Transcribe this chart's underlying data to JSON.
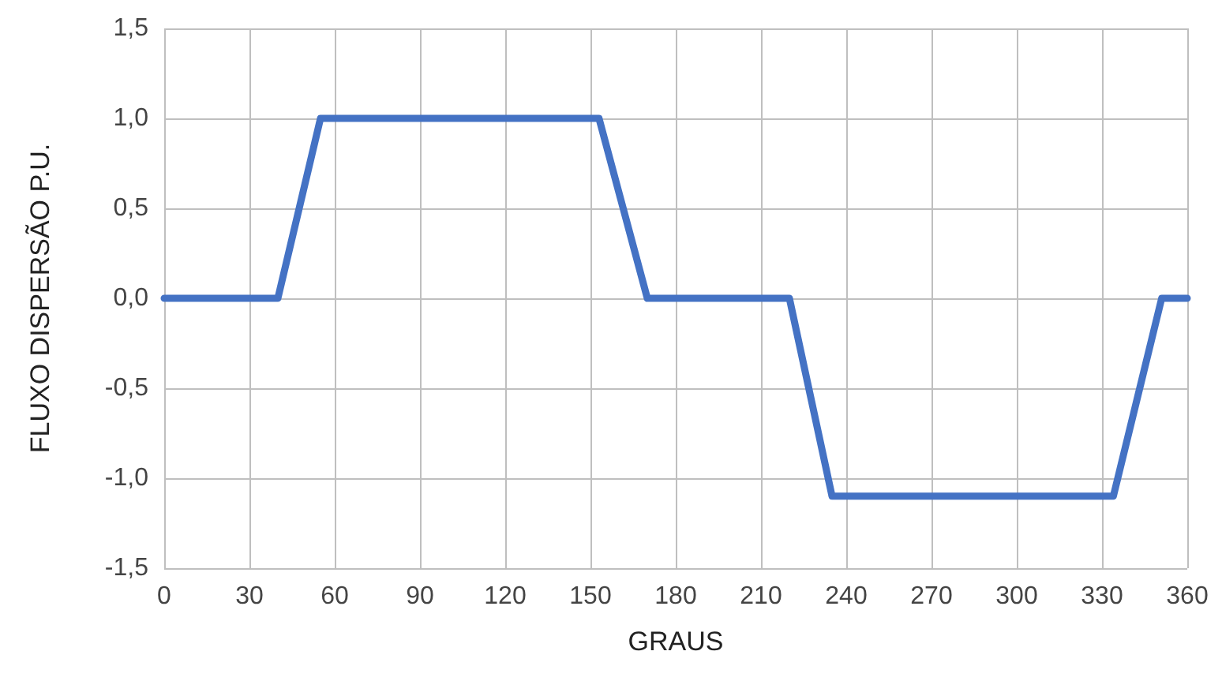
{
  "chart_data": {
    "type": "line",
    "xlabel": "GRAUS",
    "ylabel": "FLUXO DISPERSÃO P.U.",
    "x": [
      0,
      40,
      55,
      153,
      170,
      220,
      235,
      334,
      351,
      360
    ],
    "series": [
      {
        "color": "#4472c4",
        "values": [
          0,
          0,
          1.0,
          1.0,
          0,
          0,
          -1.1,
          -1.1,
          0,
          0
        ]
      }
    ],
    "xlim": [
      0,
      360
    ],
    "xticks": [
      0,
      30,
      60,
      90,
      120,
      150,
      180,
      210,
      240,
      270,
      300,
      330,
      360
    ],
    "ylim": [
      -1.5,
      1.5
    ],
    "yticks": [
      {
        "value": -1.5,
        "label": "-1,5"
      },
      {
        "value": -1,
        "label": "-1,0"
      },
      {
        "value": -0.5,
        "label": "-0,5"
      },
      {
        "value": 0,
        "label": "0,0"
      },
      {
        "value": 0.5,
        "label": "0,5"
      },
      {
        "value": 1,
        "label": "1,0"
      },
      {
        "value": 1.5,
        "label": "1,5"
      }
    ],
    "grid": true,
    "marker": "none",
    "line_style": "solid"
  }
}
